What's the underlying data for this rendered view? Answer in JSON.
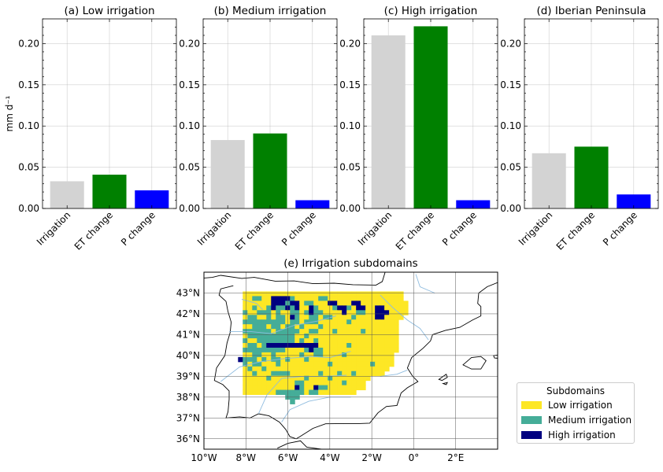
{
  "chart_data": [
    {
      "type": "bar",
      "title": "(a) Low irrigation",
      "ylabel": "mm d⁻¹",
      "categories": [
        "Irrigation",
        "ET change",
        "P change"
      ],
      "values": [
        0.033,
        0.041,
        0.022
      ],
      "colors": [
        "#d3d3d3",
        "#008000",
        "#0000ff"
      ],
      "ylim": [
        0,
        0.23
      ],
      "yticks": [
        "0.00",
        "0.05",
        "0.10",
        "0.15",
        "0.20"
      ],
      "grid": true
    },
    {
      "type": "bar",
      "title": "(b) Medium irrigation",
      "categories": [
        "Irrigation",
        "ET change",
        "P change"
      ],
      "values": [
        0.083,
        0.091,
        0.01
      ],
      "colors": [
        "#d3d3d3",
        "#008000",
        "#0000ff"
      ],
      "ylim": [
        0,
        0.23
      ],
      "yticks": [
        "0.00",
        "0.05",
        "0.10",
        "0.15",
        "0.20"
      ],
      "grid": true
    },
    {
      "type": "bar",
      "title": "(c) High irrigation",
      "categories": [
        "Irrigation",
        "ET change",
        "P change"
      ],
      "values": [
        0.21,
        0.221,
        0.01
      ],
      "colors": [
        "#d3d3d3",
        "#008000",
        "#0000ff"
      ],
      "ylim": [
        0,
        0.23
      ],
      "yticks": [
        "0.00",
        "0.05",
        "0.10",
        "0.15",
        "0.20"
      ],
      "grid": true
    },
    {
      "type": "bar",
      "title": "(d) Iberian Peninsula",
      "categories": [
        "Irrigation",
        "ET change",
        "P change"
      ],
      "values": [
        0.067,
        0.075,
        0.017
      ],
      "colors": [
        "#d3d3d3",
        "#008000",
        "#0000ff"
      ],
      "ylim": [
        0,
        0.23
      ],
      "yticks": [
        "0.00",
        "0.05",
        "0.10",
        "0.15",
        "0.20"
      ],
      "grid": true
    },
    {
      "type": "heatmap",
      "title": "(e) Irrigation subdomains",
      "xlim": [
        -10,
        4
      ],
      "ylim": [
        35.5,
        44
      ],
      "xticks": [
        -10,
        -8,
        -6,
        -4,
        -2,
        0,
        2
      ],
      "xtick_labels": [
        "10°W",
        "8°W",
        "6°W",
        "4°W",
        "2°W",
        "0°",
        "2°E"
      ],
      "yticks": [
        36,
        37,
        38,
        39,
        40,
        41,
        42,
        43
      ],
      "ytick_labels": [
        "36°N",
        "37°N",
        "38°N",
        "39°N",
        "40°N",
        "41°N",
        "42°N",
        "43°N"
      ],
      "grid": true,
      "classes": [
        {
          "name": "Low irrigation",
          "color": "#fde725"
        },
        {
          "name": "Medium irrigation",
          "color": "#45ad98"
        },
        {
          "name": "High irrigation",
          "color": "#000080"
        }
      ],
      "grid_spec": {
        "lon0": -8.6,
        "lat_top": 43.3,
        "cell_deg": 0.225
      },
      "cells": [
        "......................................",
        "..YYYYYYYYYYYYYYYYYYYYYYYYYYYYYYYYYY..",
        "..YYMMYYHHHHMYYYYYMMYYYYYYYYYYYYYYYY..",
        "..YYYYYYHHHMHHYMMYYYHHYYYHHYYYYYYYYYY.",
        "..YYMYYMHMMHMHYYHMYYYMHHMYHHYYHHYYYYY.",
        "..MYYMMMYMYYMMYMHMMYYYYHYYMMYYHHHYYYY.",
        "..YMMYYMYMMYHMYYMMYMMYYYYMYYYYHHYYYY..",
        "..MMMMMMMMMYMMYMMMYYYYYYMYYYYYYYYYY...",
        "..YYMMMYMMYMMYMYYYMYYYYYYYYYYYYYYYY...",
        "..MMMMMMYMMMMMYYMMYYYMYYYYYMYYYYYYY...",
        "..YMMMMMMMMMMYYMYYYYYYYYYYYYYYYYYYY...",
        "..MYYMMMMMMMMYMYYMYYYYYYYYYYYYYYYYY...",
        "..YMMYMHHHHHHHHHHHYYYYYYMYYYYYYYYYY...",
        "..MMMMMMMMMYYYYMHMMYYYYYYYYYYYYYYYY...",
        "..YYMMYYMYYYYYMYYMMYYYYMYYYYYYYYYY....",
        ".HMMMYMYMMYMYYYMYYYYYYYYYYYYYYYYYY....",
        "..MYMMYYYMYYYYYYYYYYMYYYYYYYYMYYYY....",
        "..YMYYMYYYYYYYYYYYYYYYYYYYYYYYYYY.....",
        "..YYMYYYMMMMYYYYYYMYYYMYYMYYYYYY......",
        "..YYYYYMYYYYYYYMYYYYMYYYYYYYY.........",
        "..YYYYYYYYYYYMMYYYYYYYYMYYYY..........",
        "..YYYYYYYYYYYHMYYHMMYYYYYYYY..........",
        "..YYYYYYYMMMMMMYMMYYYYYYYY............",
        "...........MMM........................",
        "............M........................."
      ]
    }
  ]
}
